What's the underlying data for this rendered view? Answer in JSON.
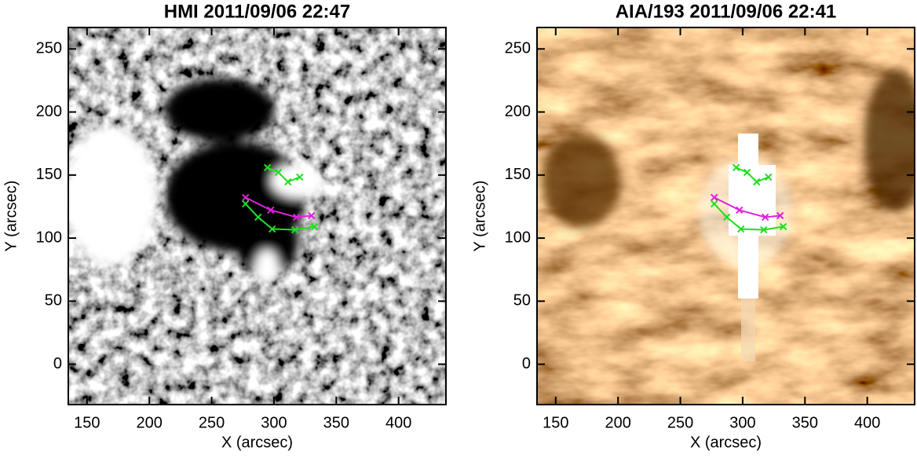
{
  "chart_data": [
    {
      "type": "line",
      "title": "HMI 2011/09/06 22:47",
      "xlabel": "X (arcsec)",
      "ylabel": "Y (arcsec)",
      "xlim": [
        135,
        438
      ],
      "ylim": [
        -32,
        267
      ],
      "xticks": [
        150,
        200,
        250,
        300,
        350,
        400
      ],
      "yticks": [
        0,
        50,
        100,
        150,
        200,
        250
      ],
      "series": [
        {
          "color": "#22dd22",
          "x": [
            294.8,
            303.6,
            311.2,
            320.7
          ],
          "values": [
            155.9,
            152.1,
            144.6,
            148.4
          ]
        },
        {
          "color": "#dd22dd",
          "x": [
            277.2,
            297.4,
            318.1,
            330.1
          ],
          "values": [
            132.2,
            122.2,
            116.6,
            117.8
          ]
        },
        {
          "color": "#22dd22",
          "x": [
            277.2,
            287.3,
            298.6,
            316.9,
            332.6
          ],
          "values": [
            127.2,
            116.6,
            107.2,
            106.6,
            109.1
          ]
        }
      ]
    },
    {
      "type": "line",
      "title": "AIA/193 2011/09/06 22:41",
      "xlabel": "X (arcsec)",
      "ylabel": "Y (arcsec)",
      "xlim": [
        135,
        438
      ],
      "ylim": [
        -32,
        267
      ],
      "xticks": [
        150,
        200,
        250,
        300,
        350,
        400
      ],
      "yticks": [
        0,
        50,
        100,
        150,
        200,
        250
      ],
      "series": [
        {
          "color": "#22dd22",
          "x": [
            294.8,
            303.6,
            311.2,
            320.7
          ],
          "values": [
            155.9,
            152.1,
            144.6,
            148.4
          ]
        },
        {
          "color": "#dd22dd",
          "x": [
            277.2,
            297.4,
            318.1,
            330.1
          ],
          "values": [
            132.2,
            122.2,
            116.6,
            117.8
          ]
        },
        {
          "color": "#22dd22",
          "x": [
            277.2,
            287.3,
            298.6,
            316.9,
            332.6
          ],
          "values": [
            127.2,
            116.6,
            107.2,
            106.6,
            109.1
          ]
        }
      ]
    }
  ]
}
